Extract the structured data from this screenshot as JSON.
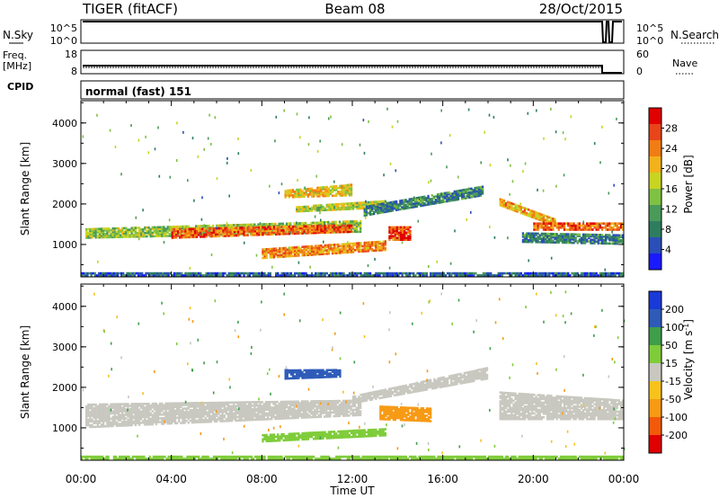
{
  "header": {
    "radar": "TIGER (fitACF)",
    "beam": "Beam 08",
    "date": "28/Oct/2015"
  },
  "strips": {
    "nsky_label": "N.Sky",
    "nsky_ticks": [
      "10^5",
      "10^0"
    ],
    "nsearch_label": "N.Search",
    "nsearch_ticks": [
      "10^5",
      "10^0"
    ],
    "freq_label_1": "Freq.",
    "freq_label_2": "[MHz]",
    "freq_ticks": [
      "18",
      "8"
    ],
    "nave_label": "Nave",
    "nave_ticks": [
      "60",
      "0"
    ],
    "cpid_label": "CPID",
    "cpid_value": "normal (fast) 151"
  },
  "chart_data": [
    {
      "type": "heatmap",
      "name": "power",
      "ylabel": "Slant Range [km]",
      "y_ticks": [
        "1000",
        "2000",
        "3000",
        "4000"
      ],
      "ylim": [
        200,
        4550
      ],
      "xlim_hours": [
        0,
        24
      ],
      "colorbar_label": "Power [dB]",
      "colorbar_ticks": [
        "28",
        "24",
        "20",
        "16",
        "12",
        "8",
        "4"
      ],
      "colors": [
        "#1a1aff",
        "#2a4fb8",
        "#2e7d60",
        "#4a9a5a",
        "#7fc242",
        "#c8d422",
        "#f2b21b",
        "#f07d14",
        "#e8451a",
        "#e00000"
      ],
      "regions": [
        {
          "t": [
            0.2,
            12.4
          ],
          "r0": [
            1150,
            1400
          ],
          "r1": [
            1300,
            1600
          ],
          "level": 16
        },
        {
          "t": [
            4.0,
            12.0
          ],
          "r0": [
            1150,
            1400
          ],
          "r1": [
            1300,
            1500
          ],
          "level": 26
        },
        {
          "t": [
            9.0,
            12.0
          ],
          "r0": [
            2150,
            2350
          ],
          "r1": [
            2200,
            2500
          ],
          "level": 20
        },
        {
          "t": [
            9.5,
            13.5
          ],
          "r0": [
            1800,
            1950
          ],
          "r1": [
            1900,
            2100
          ],
          "level": 18
        },
        {
          "t": [
            8.0,
            13.5
          ],
          "r0": [
            650,
            900
          ],
          "r1": [
            850,
            1100
          ],
          "level": 24
        },
        {
          "t": [
            13.6,
            14.6
          ],
          "r0": [
            1100,
            1450
          ],
          "r1": [
            1100,
            1450
          ],
          "level": 28
        },
        {
          "t": [
            12.5,
            17.8
          ],
          "r0": [
            1700,
            1950
          ],
          "r1": [
            2200,
            2450
          ],
          "level": 10
        },
        {
          "t": [
            18.5,
            21.0
          ],
          "r0": [
            1950,
            2150
          ],
          "r1": [
            1450,
            1650
          ],
          "level": 22
        },
        {
          "t": [
            20.0,
            24.0
          ],
          "r0": [
            1350,
            1550
          ],
          "r1": [
            1350,
            1550
          ],
          "level": 26
        },
        {
          "t": [
            19.5,
            24.0
          ],
          "r0": [
            1050,
            1300
          ],
          "r1": [
            1000,
            1250
          ],
          "level": 10
        },
        {
          "t": [
            0.0,
            24.0
          ],
          "r0": [
            220,
            320
          ],
          "r1": [
            220,
            320
          ],
          "level": 8
        }
      ]
    },
    {
      "type": "heatmap",
      "name": "velocity",
      "ylabel": "Slant Range [km]",
      "y_ticks": [
        "1000",
        "2000",
        "3000",
        "4000"
      ],
      "ylim": [
        200,
        4550
      ],
      "xlim_hours": [
        0,
        24
      ],
      "xlabel": "Time UT",
      "x_ticks": [
        "00:00",
        "04:00",
        "08:00",
        "12:00",
        "16:00",
        "20:00",
        "00:00"
      ],
      "colorbar_label": "Velocity [m s",
      "colorbar_sup": "-1",
      "colorbar_ticks": [
        "200",
        "100",
        "50",
        "15",
        "-15",
        "-50",
        "-100",
        "-200"
      ],
      "colors": [
        "#e00000",
        "#f25a0a",
        "#f79a14",
        "#f7c21c",
        "#c8c8c0",
        "#7fcc3a",
        "#3f9e4a",
        "#2e5bb8",
        "#1a3ad8"
      ],
      "regions": [
        {
          "t": [
            0.2,
            12.4
          ],
          "r0": [
            1000,
            1600
          ],
          "r1": [
            1300,
            1700
          ],
          "level": 0
        },
        {
          "t": [
            12.0,
            18.0
          ],
          "r0": [
            1600,
            1800
          ],
          "r1": [
            2200,
            2500
          ],
          "level": 0
        },
        {
          "t": [
            18.5,
            24.0
          ],
          "r0": [
            1200,
            1900
          ],
          "r1": [
            1200,
            1700
          ],
          "level": 0
        },
        {
          "t": [
            9.0,
            11.5
          ],
          "r0": [
            2200,
            2450
          ],
          "r1": [
            2250,
            2450
          ],
          "level": 120
        },
        {
          "t": [
            13.2,
            15.5
          ],
          "r0": [
            1200,
            1550
          ],
          "r1": [
            1150,
            1500
          ],
          "level": -60
        },
        {
          "t": [
            8.0,
            13.5
          ],
          "r0": [
            650,
            850
          ],
          "r1": [
            800,
            1000
          ],
          "level": 30
        },
        {
          "t": [
            0.0,
            24.0
          ],
          "r0": [
            220,
            320
          ],
          "r1": [
            220,
            320
          ],
          "level": 30
        }
      ]
    }
  ]
}
